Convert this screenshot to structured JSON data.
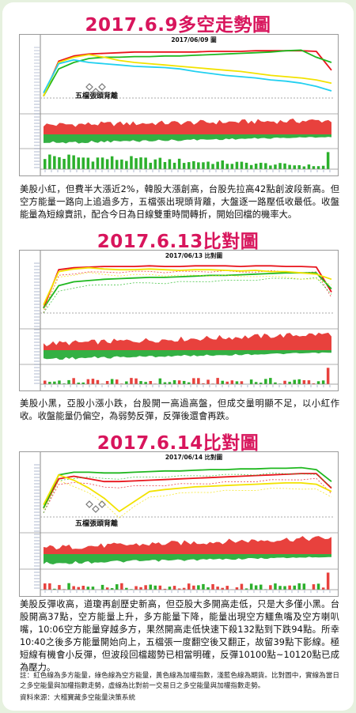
{
  "sections": [
    {
      "title": "2017.6.9多空走勢圖",
      "chart_date": "2017/06/09 圖",
      "annotation": "五檔張頭背離",
      "description": "美股小紅，但費半大漲近2%，韓股大漲創高，台股先拉高42點創波段新高。但空方能量一路向上追過多方，五檔張出現頭背離，大盤逐一路壓低收最低。收盤能量為短線賣訊，配合今日為日線雙重時間轉折，開始回檔的機率大。"
    },
    {
      "title": "2017.6.13比對圖",
      "chart_date": "2017/06/13 比對圖",
      "annotation": "",
      "description": "美股小黑，亞股小漲小跌，台股開一高過高盤，但成交量明顯不足，以小紅作收。收盤能量仍偏空，為弱勢反彈，反彈後還會再跌。"
    },
    {
      "title": "2017.6.14比對圖",
      "chart_date": "2017/06/14 比對圖",
      "annotation": "五檔張頭背離",
      "description": "美股反彈收高，道瓊再創歷史新高，但亞股大多開高走低，只是大多僅小黑。台股開高37點，空方能量上升，多方能量下降，能量出現空方鱷魚嘴及空方喇叭嘴，10:06空方能量穿越多方，果然開高走低快速下殺132點到下跌94點。所幸10:40之後多方能量開始向上，五檔張一度翻空後又翻正，故留39點下影線。極短線有機會小反彈，但波段回檔趨勢已相當明確，反彈10100點~10120點已成為壓力。"
    }
  ],
  "footer": {
    "note": "註：紅色線為多方能量，綠色線為空方能量，黃色線為加權指數，淺藍色線為期貨。比對圖中，實線為當日之多空能量與加權指數走勢，虛線為比對前一交易日之多空能量與加權指數走勢。",
    "source": "資料來源：大稽寶藏多空能量決策系統"
  },
  "colors": {
    "title": "#d8155c",
    "bull_energy": "#e8141c",
    "bear_energy": "#1fb81f",
    "index": "#f2e200",
    "futures": "#22d0f0",
    "background": "#e6f1df"
  },
  "chart_data": [
    {
      "type": "line",
      "title": "2017/06/09 圖",
      "legend": "none",
      "series": [
        {
          "color": "red",
          "values": [
            20,
            74,
            82,
            85,
            86,
            87,
            88,
            88,
            88,
            88,
            88,
            89,
            89,
            89,
            90,
            90,
            90,
            90,
            89,
            60
          ]
        },
        {
          "color": "green",
          "values": [
            20,
            62,
            72,
            78,
            80,
            80,
            81,
            81,
            82,
            82,
            83,
            84,
            85,
            86,
            87,
            88,
            90,
            91,
            80,
            72
          ]
        },
        {
          "color": "yellow",
          "values": [
            20,
            72,
            80,
            84,
            80,
            75,
            72,
            70,
            68,
            66,
            64,
            62,
            60,
            58,
            55,
            52,
            50,
            48,
            45,
            40
          ]
        },
        {
          "color": "cyan",
          "values": [
            25,
            70,
            76,
            72,
            70,
            68,
            66,
            65,
            64,
            62,
            58,
            55,
            52,
            50,
            48,
            45,
            43,
            40,
            35,
            28
          ]
        }
      ]
    },
    {
      "type": "line",
      "title": "2017/06/13 比對圖",
      "legend": "none",
      "series": [
        {
          "color": "red",
          "values": [
            25,
            85,
            88,
            89,
            90,
            90,
            90,
            91,
            90,
            90,
            91,
            91,
            91,
            90,
            91,
            91,
            90,
            90,
            89,
            50
          ]
        },
        {
          "color": "green",
          "values": [
            25,
            60,
            66,
            68,
            70,
            71,
            72,
            73,
            73,
            74,
            75,
            76,
            76,
            77,
            78,
            79,
            80,
            80,
            80,
            55
          ]
        },
        {
          "color": "yellow",
          "values": [
            30,
            82,
            86,
            88,
            86,
            85,
            85,
            86,
            85,
            84,
            85,
            85,
            84,
            83,
            84,
            82,
            82,
            80,
            78,
            70
          ]
        }
      ]
    },
    {
      "type": "line",
      "title": "2017/06/14 比對圖",
      "legend": "none",
      "series": [
        {
          "color": "red",
          "values": [
            30,
            74,
            78,
            74,
            70,
            70,
            71,
            72,
            73,
            74,
            75,
            76,
            77,
            78,
            79,
            80,
            81,
            82,
            82,
            60
          ]
        },
        {
          "color": "green",
          "values": [
            30,
            80,
            84,
            84,
            83,
            83,
            84,
            85,
            86,
            86,
            87,
            88,
            88,
            89,
            89,
            90,
            90,
            91,
            88,
            70
          ]
        },
        {
          "color": "yellow",
          "values": [
            35,
            80,
            72,
            60,
            45,
            25,
            40,
            55,
            58,
            60,
            62,
            63,
            64,
            65,
            66,
            67,
            68,
            68,
            66,
            55
          ]
        }
      ]
    }
  ]
}
